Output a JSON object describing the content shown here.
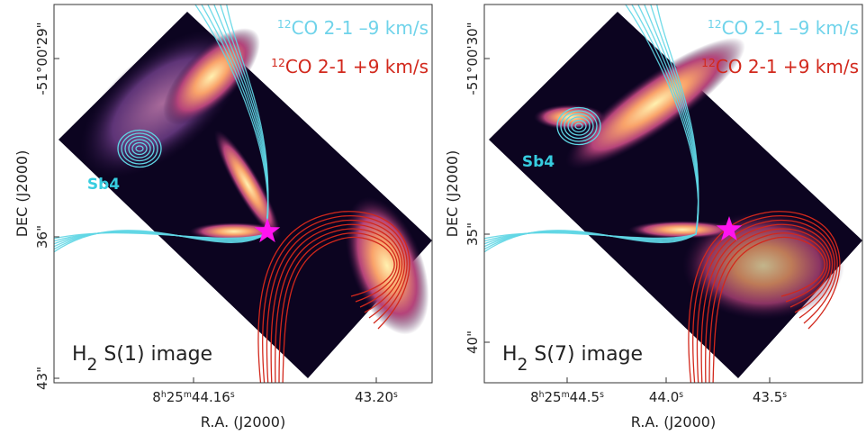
{
  "panels": [
    {
      "legend": [
        [
          "12",
          "CO 2-1 –9 km/s"
        ],
        [
          "12",
          "CO 2-1 +9 km/s"
        ]
      ],
      "source_label": "Sb4",
      "image_label": [
        "H",
        "2",
        " S(1) image"
      ],
      "x_axis_label": "R.A. (J2000)",
      "y_axis_label": "DEC (J2000)",
      "x_tick_labels": [
        [
          "8",
          "h",
          "25",
          "m",
          "44.16",
          "s"
        ],
        [
          "43.20",
          "s"
        ]
      ],
      "y_tick_labels": [
        "-51°00'29\"",
        "36\"",
        "43\""
      ]
    },
    {
      "legend": [
        [
          "12",
          "CO 2-1 –9 km/s"
        ],
        [
          "12",
          "CO 2-1 +9 km/s"
        ]
      ],
      "source_label": "Sb4",
      "image_label": [
        "H",
        "2",
        " S(7) image"
      ],
      "x_axis_label": "R.A. (J2000)",
      "y_axis_label": "DEC (J2000)",
      "x_tick_labels": [
        [
          "8",
          "h",
          "25",
          "m",
          "44.5",
          "s"
        ],
        [
          "44.0",
          "s"
        ],
        [
          "43.5",
          "s"
        ]
      ],
      "y_tick_labels": [
        "-51°00'30\"",
        "35\"",
        "40\""
      ]
    }
  ]
}
